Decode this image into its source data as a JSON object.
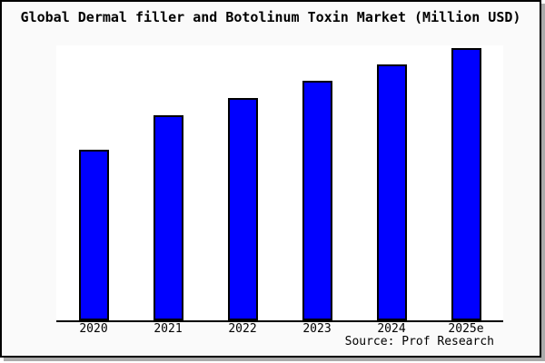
{
  "chart_data": {
    "type": "bar",
    "title": "Global Dermal filler and Botolinum Toxin Market (Million USD)",
    "categories": [
      "2020",
      "2021",
      "2022",
      "2023",
      "2024",
      "2025e"
    ],
    "values": [
      188,
      226,
      245,
      264,
      282,
      300
    ],
    "values_note": "No y-axis or value labels shown in chart; values are relative bar heights in pixels (ratio approx 5 : 6 : 6.5 : 7 : 7.5 : 8)",
    "xlabel": "",
    "ylabel": "",
    "grid": false,
    "legend": false,
    "source": "Source: Prof Research",
    "colors": {
      "bar_fill": "#0000ff",
      "bar_edge": "#000000",
      "axis_line": "#000000",
      "plot_background": "#ffffff",
      "canvas_background": "#fafafa",
      "frame_border": "#000000",
      "frame_shadow": "#aaaaaa",
      "text": "#000000"
    }
  }
}
